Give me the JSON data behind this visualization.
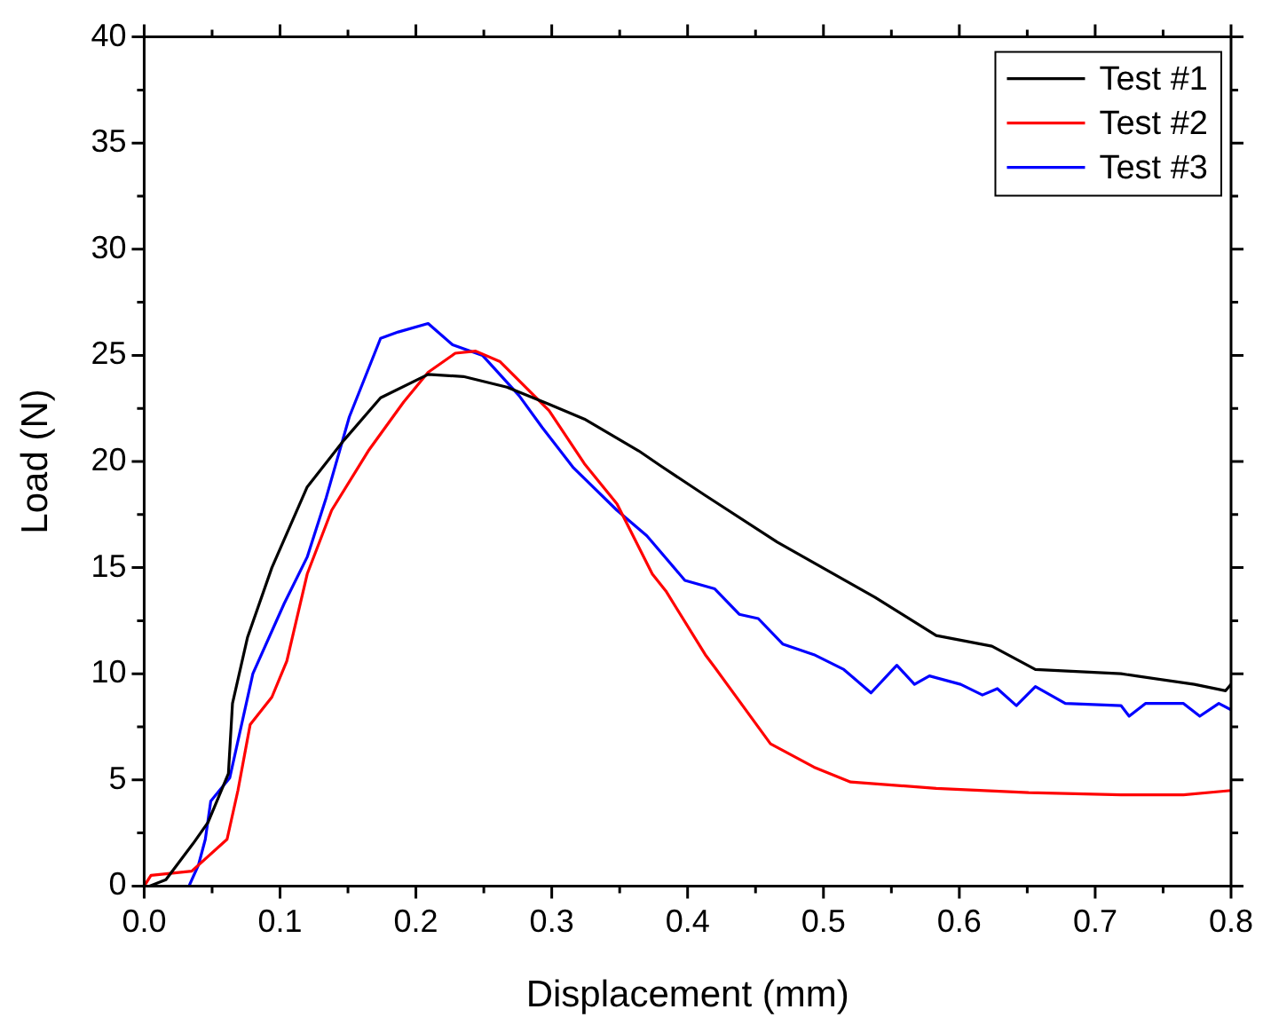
{
  "chart_data": {
    "type": "line",
    "xlabel": "Displacement (mm)",
    "ylabel": "Load (N)",
    "xlim": [
      0,
      0.8
    ],
    "ylim": [
      0,
      40
    ],
    "xticks": [
      {
        "value": 0,
        "label": "0.0"
      },
      {
        "value": 0.05,
        "label": null
      },
      {
        "value": 0.1,
        "label": "0.1"
      },
      {
        "value": 0.15,
        "label": null
      },
      {
        "value": 0.2,
        "label": "0.2"
      },
      {
        "value": 0.25,
        "label": null
      },
      {
        "value": 0.3,
        "label": "0.3"
      },
      {
        "value": 0.35,
        "label": null
      },
      {
        "value": 0.4,
        "label": "0.4"
      },
      {
        "value": 0.45,
        "label": null
      },
      {
        "value": 0.5,
        "label": "0.5"
      },
      {
        "value": 0.55,
        "label": null
      },
      {
        "value": 0.6,
        "label": "0.6"
      },
      {
        "value": 0.65,
        "label": null
      },
      {
        "value": 0.7,
        "label": "0.7"
      },
      {
        "value": 0.75,
        "label": null
      },
      {
        "value": 0.8,
        "label": "0.8"
      }
    ],
    "yticks": [
      0,
      {
        "value": 2.5,
        "label": null
      },
      5,
      {
        "value": 7.5,
        "label": null
      },
      10,
      {
        "value": 12.5,
        "label": null
      },
      15,
      {
        "value": 17.5,
        "label": null
      },
      20,
      {
        "value": 22.5,
        "label": null
      },
      25,
      {
        "value": 27.5,
        "label": null
      },
      30,
      {
        "value": 32.5,
        "label": null
      },
      35,
      {
        "value": 37.5,
        "label": null
      },
      40
    ],
    "grid": false,
    "legend": "top right",
    "marker": "none",
    "line_style": "solid",
    "series": [
      {
        "name": "Test #1",
        "color": "#000000",
        "x": [
          0.004,
          0.016,
          0.036,
          0.047,
          0.062,
          0.065,
          0.076,
          0.094,
          0.12,
          0.147,
          0.174,
          0.209,
          0.235,
          0.267,
          0.298,
          0.324,
          0.364,
          0.38,
          0.413,
          0.466,
          0.538,
          0.583,
          0.624,
          0.656,
          0.719,
          0.773,
          0.796,
          0.8
        ],
        "values": [
          0,
          0.3,
          2,
          3,
          5.3,
          8.6,
          11.7,
          15,
          18.8,
          21,
          23,
          24.1,
          24,
          23.5,
          22.7,
          22,
          20.5,
          19.8,
          18.4,
          16.2,
          13.6,
          11.8,
          11.3,
          10.2,
          10,
          9.5,
          9.2,
          9.5
        ]
      },
      {
        "name": "Test #2",
        "color": "#ff0000",
        "x": [
          0,
          0.005,
          0.035,
          0.061,
          0.069,
          0.078,
          0.094,
          0.105,
          0.12,
          0.138,
          0.165,
          0.191,
          0.209,
          0.229,
          0.244,
          0.262,
          0.298,
          0.324,
          0.348,
          0.374,
          0.384,
          0.413,
          0.42,
          0.461,
          0.493,
          0.52,
          0.583,
          0.651,
          0.719,
          0.765,
          0.8
        ],
        "values": [
          0,
          0.5,
          0.7,
          2.2,
          4.5,
          7.6,
          8.9,
          10.6,
          14.7,
          17.7,
          20.5,
          22.8,
          24.2,
          25.1,
          25.2,
          24.7,
          22.4,
          19.9,
          18,
          14.7,
          13.9,
          10.9,
          10.3,
          6.7,
          5.6,
          4.9,
          4.6,
          4.4,
          4.3,
          4.3,
          4.5
        ]
      },
      {
        "name": "Test #3",
        "color": "#0000ff",
        "x": [
          0.033,
          0.04,
          0.045,
          0.049,
          0.063,
          0.08,
          0.103,
          0.12,
          0.134,
          0.151,
          0.174,
          0.187,
          0.209,
          0.227,
          0.249,
          0.276,
          0.293,
          0.316,
          0.348,
          0.37,
          0.398,
          0.42,
          0.438,
          0.452,
          0.47,
          0.493,
          0.515,
          0.535,
          0.554,
          0.567,
          0.578,
          0.601,
          0.617,
          0.628,
          0.642,
          0.656,
          0.678,
          0.719,
          0.725,
          0.737,
          0.765,
          0.777,
          0.791,
          0.8
        ],
        "values": [
          0,
          1,
          2.2,
          4,
          5.1,
          10,
          13.3,
          15.5,
          18.3,
          22.1,
          25.8,
          26.1,
          26.5,
          25.5,
          25,
          23.1,
          21.6,
          19.7,
          17.7,
          16.5,
          14.4,
          14,
          12.8,
          12.6,
          11.4,
          10.9,
          10.2,
          9.1,
          10.4,
          9.5,
          9.9,
          9.5,
          9,
          9.3,
          8.5,
          9.4,
          8.6,
          8.5,
          8,
          8.6,
          8.6,
          8,
          8.6,
          8.3
        ]
      }
    ]
  }
}
